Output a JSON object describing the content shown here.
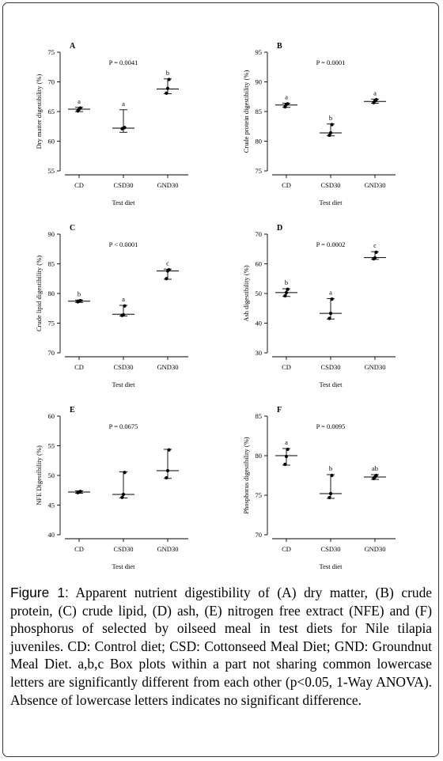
{
  "chart_data": [
    {
      "type": "scatter",
      "panel_label": "A",
      "p_value": "P = 0.0041",
      "ylabel": "Dry matter digestibility (%)",
      "xlabel": "Test diet",
      "categories": [
        "CD",
        "CSD30",
        "GND30"
      ],
      "ylim": [
        55,
        75
      ],
      "yticks": [
        55,
        60,
        65,
        70,
        75
      ],
      "groups": [
        {
          "points": [
            65.1,
            65.4,
            65.6
          ],
          "mean": 65.4,
          "ci": [
            65.0,
            65.7
          ],
          "letter": "a"
        },
        {
          "points": [
            62.1,
            62.2,
            62.3
          ],
          "mean": 62.2,
          "ci": [
            61.5,
            65.3
          ],
          "letter": "a"
        },
        {
          "points": [
            68.1,
            68.9,
            70.4
          ],
          "mean": 68.8,
          "ci": [
            68.0,
            70.5
          ],
          "letter": "b"
        }
      ]
    },
    {
      "type": "scatter",
      "panel_label": "B",
      "p_value": "P = 0.0001",
      "ylabel": "Crude protein digestibility (%)",
      "xlabel": "Test diet",
      "categories": [
        "CD",
        "CSD30",
        "GND30"
      ],
      "ylim": [
        75,
        95
      ],
      "yticks": [
        75,
        80,
        85,
        90,
        95
      ],
      "groups": [
        {
          "points": [
            85.8,
            86.2,
            86.3
          ],
          "mean": 86.1,
          "ci": [
            85.7,
            86.4
          ],
          "letter": "a"
        },
        {
          "points": [
            81.0,
            81.4,
            82.8
          ],
          "mean": 81.4,
          "ci": [
            80.9,
            82.9
          ],
          "letter": "b"
        },
        {
          "points": [
            86.5,
            86.8,
            87.0
          ],
          "mean": 86.7,
          "ci": [
            86.4,
            87.1
          ],
          "letter": "a"
        }
      ]
    },
    {
      "type": "scatter",
      "panel_label": "C",
      "p_value": "P < 0.0001",
      "ylabel": "Crude lipid digestibility (%)",
      "xlabel": "Test diet",
      "categories": [
        "CD",
        "CSD30",
        "GND30"
      ],
      "ylim": [
        70,
        90
      ],
      "yticks": [
        70,
        75,
        80,
        85,
        90
      ],
      "groups": [
        {
          "points": [
            78.6,
            78.7,
            78.8
          ],
          "mean": 78.7,
          "ci": [
            78.5,
            78.9
          ],
          "letter": "b"
        },
        {
          "points": [
            76.3,
            76.4,
            77.9
          ],
          "mean": 76.5,
          "ci": [
            76.2,
            78.0
          ],
          "letter": "a"
        },
        {
          "points": [
            82.5,
            83.8,
            84.0
          ],
          "mean": 83.8,
          "ci": [
            82.4,
            84.1
          ],
          "letter": "c"
        }
      ]
    },
    {
      "type": "scatter",
      "panel_label": "D",
      "p_value": "P = 0.0002",
      "ylabel": "Ash digestibility (%)",
      "xlabel": "Test diet",
      "categories": [
        "CD",
        "CSD30",
        "GND30"
      ],
      "ylim": [
        30,
        70
      ],
      "yticks": [
        30,
        40,
        50,
        60,
        70
      ],
      "groups": [
        {
          "points": [
            49.2,
            50.3,
            51.4
          ],
          "mean": 50.3,
          "ci": [
            49.0,
            51.6
          ],
          "letter": "b"
        },
        {
          "points": [
            41.6,
            43.3,
            48.1
          ],
          "mean": 43.3,
          "ci": [
            41.4,
            48.3
          ],
          "letter": "a"
        },
        {
          "points": [
            61.7,
            62.0,
            63.9
          ],
          "mean": 62.1,
          "ci": [
            61.5,
            64.1
          ],
          "letter": "c"
        }
      ]
    },
    {
      "type": "scatter",
      "panel_label": "E",
      "p_value": "P = 0.0675",
      "ylabel": "NFE Digestibility (%)",
      "xlabel": "Test diet",
      "categories": [
        "CD",
        "CSD30",
        "GND30"
      ],
      "ylim": [
        40,
        60
      ],
      "yticks": [
        40,
        45,
        50,
        55,
        60
      ],
      "groups": [
        {
          "points": [
            47.1,
            47.2,
            47.3
          ],
          "mean": 47.2,
          "ci": [
            47.0,
            47.4
          ],
          "letter": ""
        },
        {
          "points": [
            46.3,
            46.8,
            50.5
          ],
          "mean": 46.8,
          "ci": [
            46.2,
            50.6
          ],
          "letter": ""
        },
        {
          "points": [
            49.6,
            50.8,
            54.3
          ],
          "mean": 50.8,
          "ci": [
            49.5,
            54.4
          ],
          "letter": ""
        }
      ]
    },
    {
      "type": "scatter",
      "panel_label": "F",
      "p_value": "P = 0.0095",
      "ylabel": "Phosphorus digestibility (%)",
      "xlabel": "Test diet",
      "categories": [
        "CD",
        "CSD30",
        "GND30"
      ],
      "ylim": [
        70,
        85
      ],
      "yticks": [
        70,
        75,
        80,
        85
      ],
      "groups": [
        {
          "points": [
            78.9,
            79.9,
            80.8
          ],
          "mean": 80.0,
          "ci": [
            78.8,
            80.9
          ],
          "letter": "a"
        },
        {
          "points": [
            74.7,
            75.2,
            77.5
          ],
          "mean": 75.2,
          "ci": [
            74.6,
            77.6
          ],
          "letter": "b"
        },
        {
          "points": [
            77.1,
            77.3,
            77.5
          ],
          "mean": 77.3,
          "ci": [
            77.0,
            77.6
          ],
          "letter": "ab"
        }
      ]
    }
  ],
  "caption": {
    "label": "Figure 1:",
    "text": "Apparent nutrient digestibility of (A) dry matter, (B) crude protein, (C) crude lipid, (D) ash, (E) nitrogen free extract (NFE) and (F) phosphorus of selected by oilseed meal in test diets for Nile tilapia juveniles. CD: Control diet; CSD: Cottonseed Meal Diet; GND: Groundnut Meal Diet. a,b,c Box plots within a part not sharing common lowercase letters are significantly different from each other (p<0.05, 1-Way ANOVA). Absence of lowercase letters indicates no significant difference."
  }
}
